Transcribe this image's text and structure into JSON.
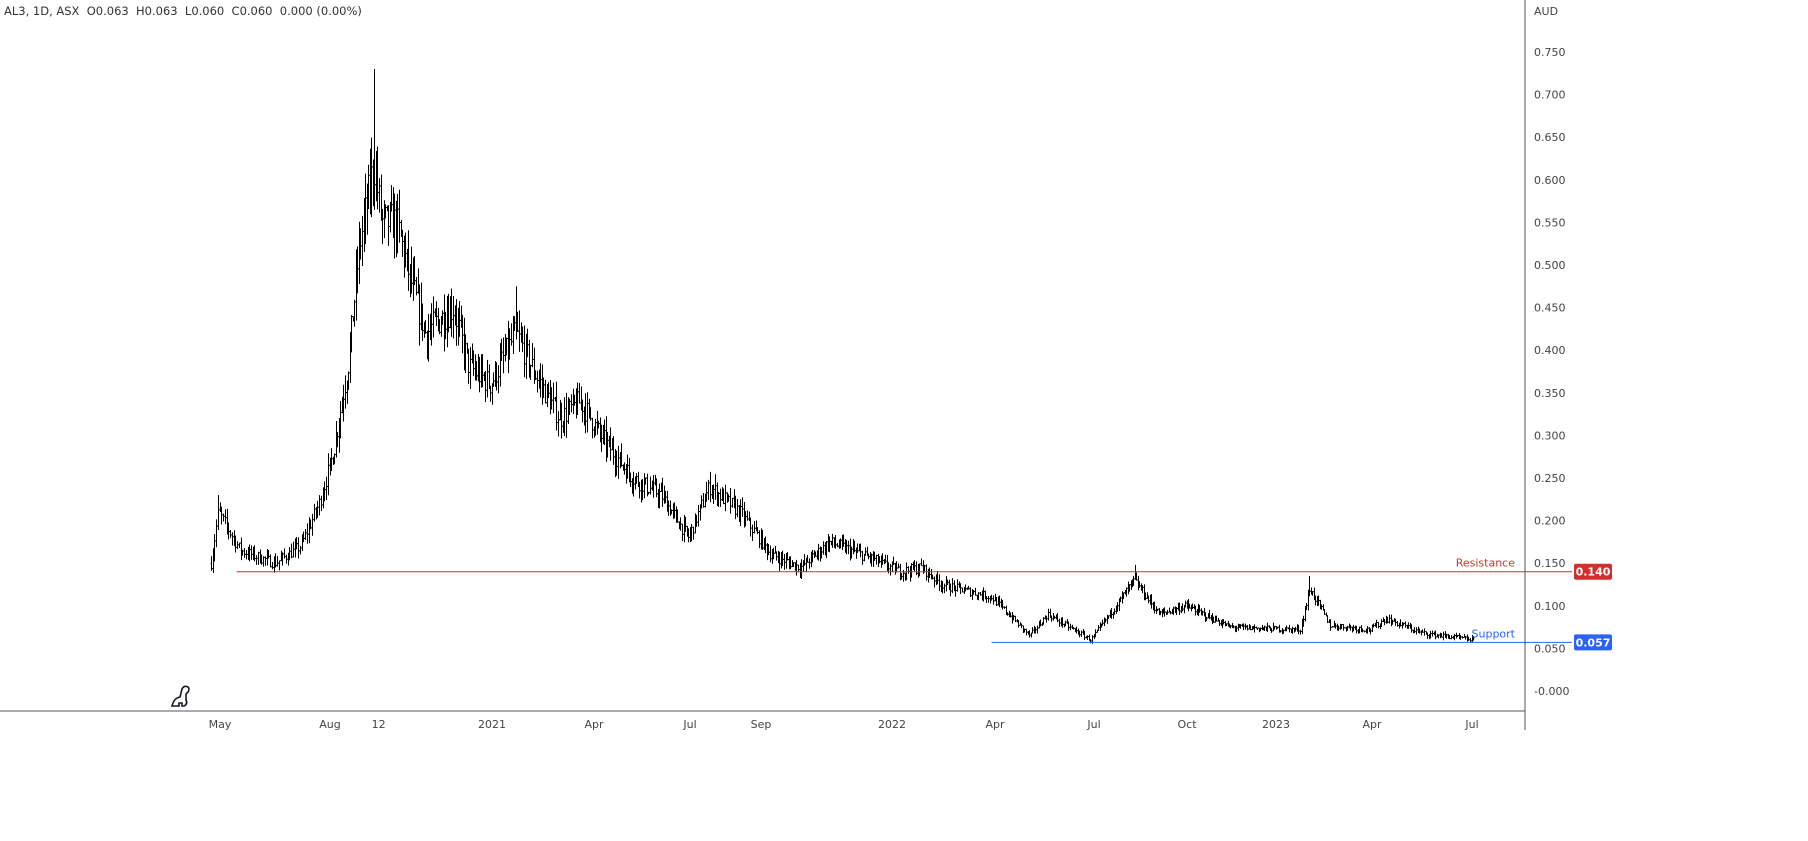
{
  "header": {
    "legend": "AL3, 1D, ASX  O0.063  H0.063  L0.060  C0.060  0.000 (0.00%)"
  },
  "chart_data": {
    "type": "ohlc",
    "symbol": "AL3",
    "interval": "1D",
    "exchange": "ASX",
    "currency": "AUD",
    "ylim": [
      -0.02,
      0.78
    ],
    "y_ticks": [
      "0.750",
      "0.700",
      "0.650",
      "0.600",
      "0.550",
      "0.500",
      "0.450",
      "0.400",
      "0.350",
      "0.300",
      "0.250",
      "0.200",
      "0.150",
      "0.100",
      "0.050",
      "-0.000"
    ],
    "y_tick_values": [
      0.75,
      0.7,
      0.65,
      0.6,
      0.55,
      0.5,
      0.45,
      0.4,
      0.35,
      0.3,
      0.25,
      0.2,
      0.15,
      0.1,
      0.05,
      0
    ],
    "x_ticks": [
      {
        "label": "May",
        "month": 0
      },
      {
        "label": "Aug",
        "month": 3
      },
      {
        "label": "12",
        "month": 4.5
      },
      {
        "label": "2021",
        "month": 8
      },
      {
        "label": "Apr",
        "month": 11
      },
      {
        "label": "Jul",
        "month": 14
      },
      {
        "label": "Sep",
        "month": 16
      },
      {
        "label": "2022",
        "month": 20
      },
      {
        "label": "Apr",
        "month": 23
      },
      {
        "label": "Jul",
        "month": 26
      },
      {
        "label": "Oct",
        "month": 29
      },
      {
        "label": "2023",
        "month": 32
      },
      {
        "label": "Apr",
        "month": 35
      },
      {
        "label": "Jul",
        "month": 38
      }
    ],
    "price_path_months_since_may2020": [
      [
        -0.25,
        0.15
      ],
      [
        -0.05,
        0.21
      ],
      [
        0.55,
        0.165
      ],
      [
        1.5,
        0.15
      ],
      [
        2.2,
        0.17
      ],
      [
        2.7,
        0.22
      ],
      [
        3.1,
        0.28
      ],
      [
        3.55,
        0.38
      ],
      [
        3.9,
        0.52
      ],
      [
        4.35,
        0.62
      ],
      [
        4.6,
        0.55
      ],
      [
        5.05,
        0.55
      ],
      [
        5.5,
        0.48
      ],
      [
        5.95,
        0.42
      ],
      [
        6.8,
        0.45
      ],
      [
        7.3,
        0.38
      ],
      [
        7.95,
        0.36
      ],
      [
        8.7,
        0.42
      ],
      [
        9.3,
        0.37
      ],
      [
        10.0,
        0.32
      ],
      [
        10.6,
        0.34
      ],
      [
        11.2,
        0.3
      ],
      [
        12.2,
        0.25
      ],
      [
        13.1,
        0.23
      ],
      [
        13.95,
        0.18
      ],
      [
        14.55,
        0.24
      ],
      [
        15.4,
        0.21
      ],
      [
        16.3,
        0.16
      ],
      [
        17.2,
        0.145
      ],
      [
        18.1,
        0.175
      ],
      [
        19.4,
        0.155
      ],
      [
        20.25,
        0.14
      ],
      [
        20.85,
        0.145
      ],
      [
        21.45,
        0.125
      ],
      [
        22.9,
        0.11
      ],
      [
        24.05,
        0.065
      ],
      [
        24.6,
        0.09
      ],
      [
        25.9,
        0.06
      ],
      [
        26.5,
        0.09
      ],
      [
        27.3,
        0.13
      ],
      [
        28.1,
        0.09
      ],
      [
        28.95,
        0.1
      ],
      [
        30.45,
        0.075
      ],
      [
        32.75,
        0.072
      ],
      [
        33.05,
        0.12
      ],
      [
        33.7,
        0.077
      ],
      [
        34.95,
        0.072
      ],
      [
        35.4,
        0.085
      ],
      [
        36.5,
        0.068
      ],
      [
        38.05,
        0.06
      ]
    ],
    "notable_highs": [
      [
        -0.05,
        0.23
      ],
      [
        4.35,
        0.73
      ],
      [
        8.7,
        0.475
      ],
      [
        27.3,
        0.148
      ],
      [
        33.05,
        0.135
      ]
    ],
    "lines": [
      {
        "name": "Resistance",
        "value": 0.14,
        "value_label": "0.140",
        "start_month": 0.45,
        "color": "#d32f2f"
      },
      {
        "name": "Support",
        "value": 0.057,
        "value_label": "0.057",
        "start_month": 22.9,
        "color": "#2962ff"
      }
    ]
  }
}
